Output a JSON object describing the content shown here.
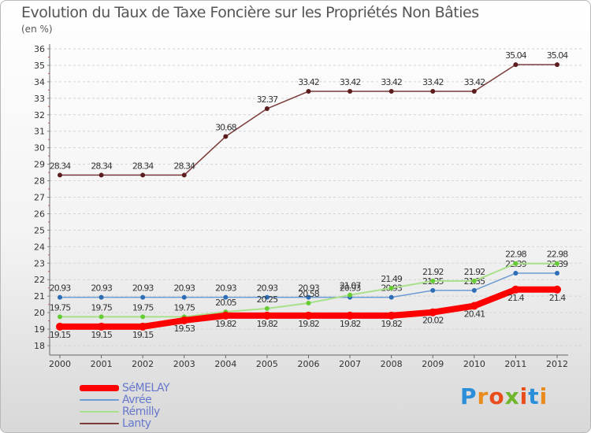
{
  "header": {
    "title": "Evolution du Taux de Taxe Foncière sur les Propriétés Non Bâties",
    "unit": "(en %)"
  },
  "logo": {
    "text": "Proxiti",
    "letter_colors": [
      "#2a8fd8",
      "#e98b1d",
      "#e84d1b",
      "#70b62c",
      "#e84d1b",
      "#2a8fd8",
      "#e98b1d"
    ]
  },
  "chart_data": {
    "type": "line",
    "title": "Evolution du Taux de Taxe Foncière sur les Propriétés Non Bâties",
    "ylabel": "(en %)",
    "xlabel": "",
    "ylim": [
      18,
      36
    ],
    "y_ticks": [
      18,
      19,
      20,
      21,
      22,
      23,
      24,
      25,
      26,
      27,
      28,
      29,
      30,
      31,
      32,
      33,
      34,
      35,
      36
    ],
    "grid": "horizontal dashed",
    "legend_position": "bottom-left",
    "categories": [
      "2000",
      "2001",
      "2002",
      "2003",
      "2004",
      "2005",
      "2006",
      "2007",
      "2008",
      "2009",
      "2010",
      "2011",
      "2012"
    ],
    "series": [
      {
        "name": "Lanty",
        "color": "#7a3b3b",
        "marker": "#5a1c1c",
        "values": [
          28.34,
          28.34,
          28.34,
          28.34,
          30.68,
          32.37,
          33.42,
          33.42,
          33.42,
          33.42,
          33.42,
          35.04,
          35.04
        ],
        "labels": [
          "28.34",
          "28.34",
          "28.34",
          "28.34",
          "30.68",
          "32.37",
          "33.42",
          "33.42",
          "33.42",
          "33.42",
          "33.42",
          "35.04",
          "35.04"
        ]
      },
      {
        "name": "Avrée",
        "color": "#6b9bd2",
        "marker": "#2c6db5",
        "values": [
          20.93,
          20.93,
          20.93,
          20.93,
          20.93,
          20.93,
          20.93,
          20.93,
          20.93,
          21.35,
          21.35,
          22.39,
          22.39
        ],
        "labels": [
          "20.93",
          "20.93",
          "20.93",
          "20.93",
          "20.93",
          "20.93",
          "20.93",
          "20.93",
          "20.93",
          "21.35",
          "21.35",
          "22.39",
          "22.39"
        ]
      },
      {
        "name": "Rémilly",
        "color": "#a9e08a",
        "marker": "#66cc33",
        "values": [
          19.75,
          19.75,
          19.75,
          19.75,
          20.05,
          20.25,
          20.58,
          21.07,
          21.49,
          21.92,
          21.92,
          22.98,
          22.98
        ],
        "labels": [
          "19.75",
          "19.75",
          "19.75",
          "19.75",
          "20.05",
          "20.25",
          "20.58",
          "21.07",
          "21.49",
          "21.92",
          "21.92",
          "22.98",
          "22.98"
        ]
      },
      {
        "name": "SéMELAY",
        "color": "#ff0000",
        "marker": "#ff0000",
        "values": [
          19.15,
          19.15,
          19.15,
          19.53,
          19.82,
          19.82,
          19.82,
          19.82,
          19.82,
          20.02,
          20.41,
          21.4,
          21.4
        ],
        "labels": [
          "19.15",
          "19.15",
          "19.15",
          "19.53",
          "19.82",
          "19.82",
          "19.82",
          "19.82",
          "19.82",
          "20.02",
          "20.41",
          "21.4",
          "21.4"
        ]
      }
    ]
  },
  "legend": [
    {
      "label": "SéMELAY",
      "color": "#ff0000"
    },
    {
      "label": "Avrée",
      "color": "#6b9bd2"
    },
    {
      "label": "Rémilly",
      "color": "#a9e08a"
    },
    {
      "label": "Lanty",
      "color": "#7a3b3b"
    }
  ]
}
